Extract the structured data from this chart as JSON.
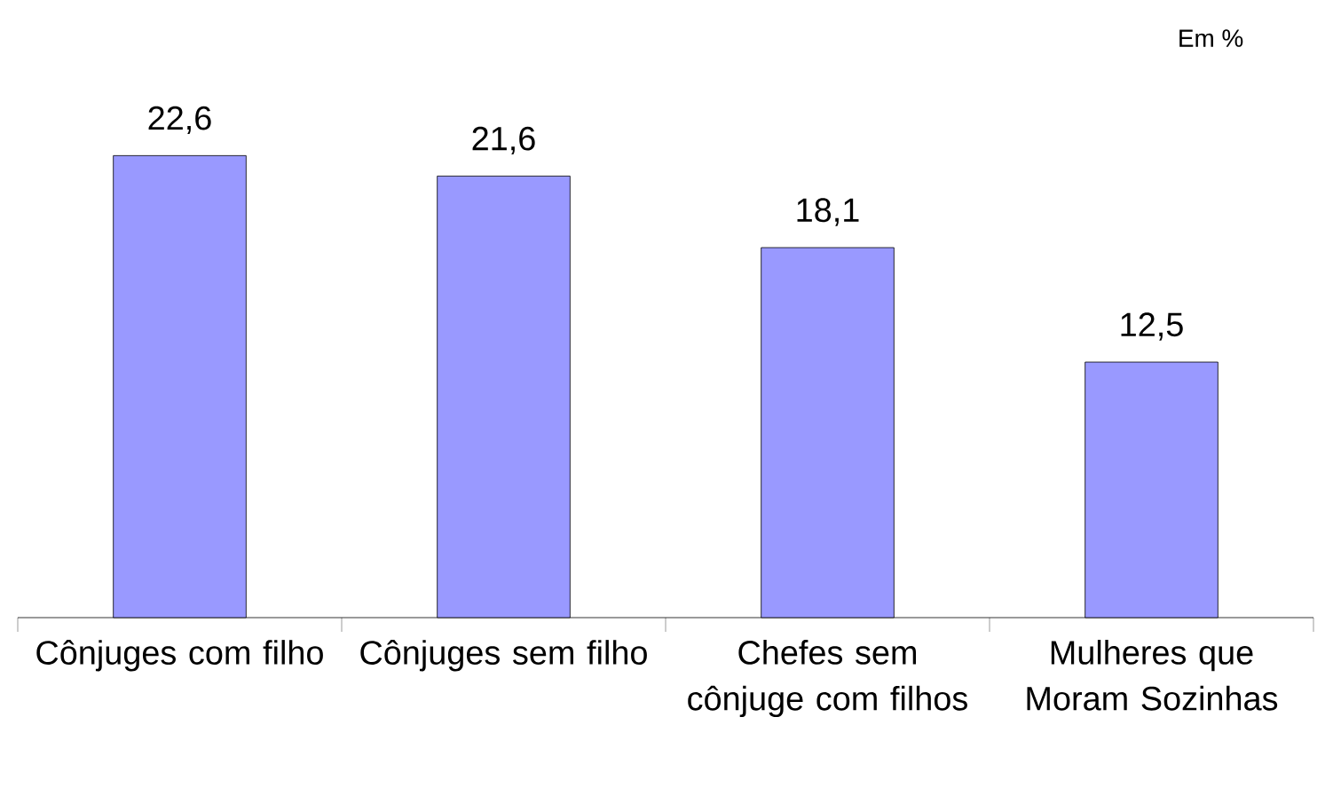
{
  "chart_data": {
    "type": "bar",
    "categories": [
      "Cônjuges com filho",
      "Cônjuges sem filho",
      "Chefes sem cônjuge com filhos",
      "Mulheres que Moram Sozinhas"
    ],
    "values": [
      22.6,
      21.6,
      18.1,
      12.5
    ],
    "value_labels": [
      "22,6",
      "21,6",
      "18,1",
      "12,5"
    ],
    "color": "#9999ff",
    "annotations": [
      "Em %"
    ]
  }
}
